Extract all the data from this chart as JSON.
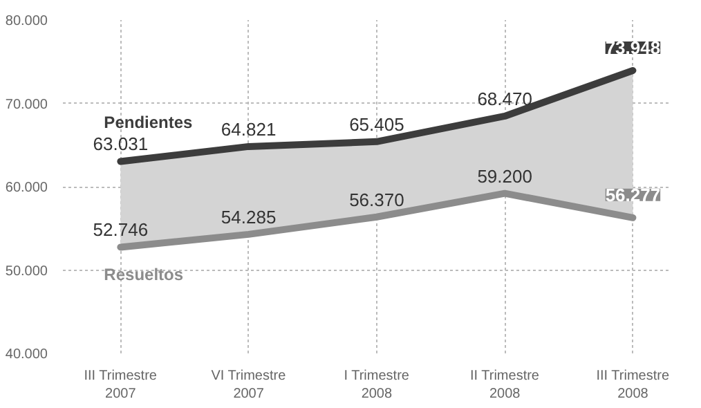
{
  "chart_data": {
    "type": "line",
    "categories": [
      "III Trimestre\n2007",
      "VI Trimestre\n2007",
      "I Trimestre\n2008",
      "II Trimestre\n2008",
      "III Trimestre\n2008"
    ],
    "series": [
      {
        "name": "Pendientes",
        "color": "#3c3c3c",
        "values": [
          63031,
          64821,
          65405,
          68470,
          73948
        ],
        "lower": [
          52746,
          54285,
          56370,
          59200,
          56277
        ],
        "upper": [
          63031,
          64821,
          65405,
          68470,
          73948
        ],
        "value_labels": [
          "63.031",
          "64.821",
          "65.405",
          "68.470",
          "73.948"
        ]
      },
      {
        "name": "Resueltos",
        "color": "#8c8c8c",
        "values": [
          52746,
          54285,
          56370,
          59200,
          56277
        ],
        "value_labels": [
          "52.746",
          "54.285",
          "56.370",
          "59.200",
          "56.277"
        ]
      }
    ],
    "ylim": [
      40000,
      80000
    ],
    "yticks": [
      {
        "value": 40000,
        "label": "40.000"
      },
      {
        "value": 50000,
        "label": "50.000"
      },
      {
        "value": 60000,
        "label": "60.000"
      },
      {
        "value": 70000,
        "label": "70.000"
      },
      {
        "value": 80000,
        "label": "80.000"
      }
    ],
    "grid": true,
    "marker": "none",
    "line_style": "solid"
  }
}
